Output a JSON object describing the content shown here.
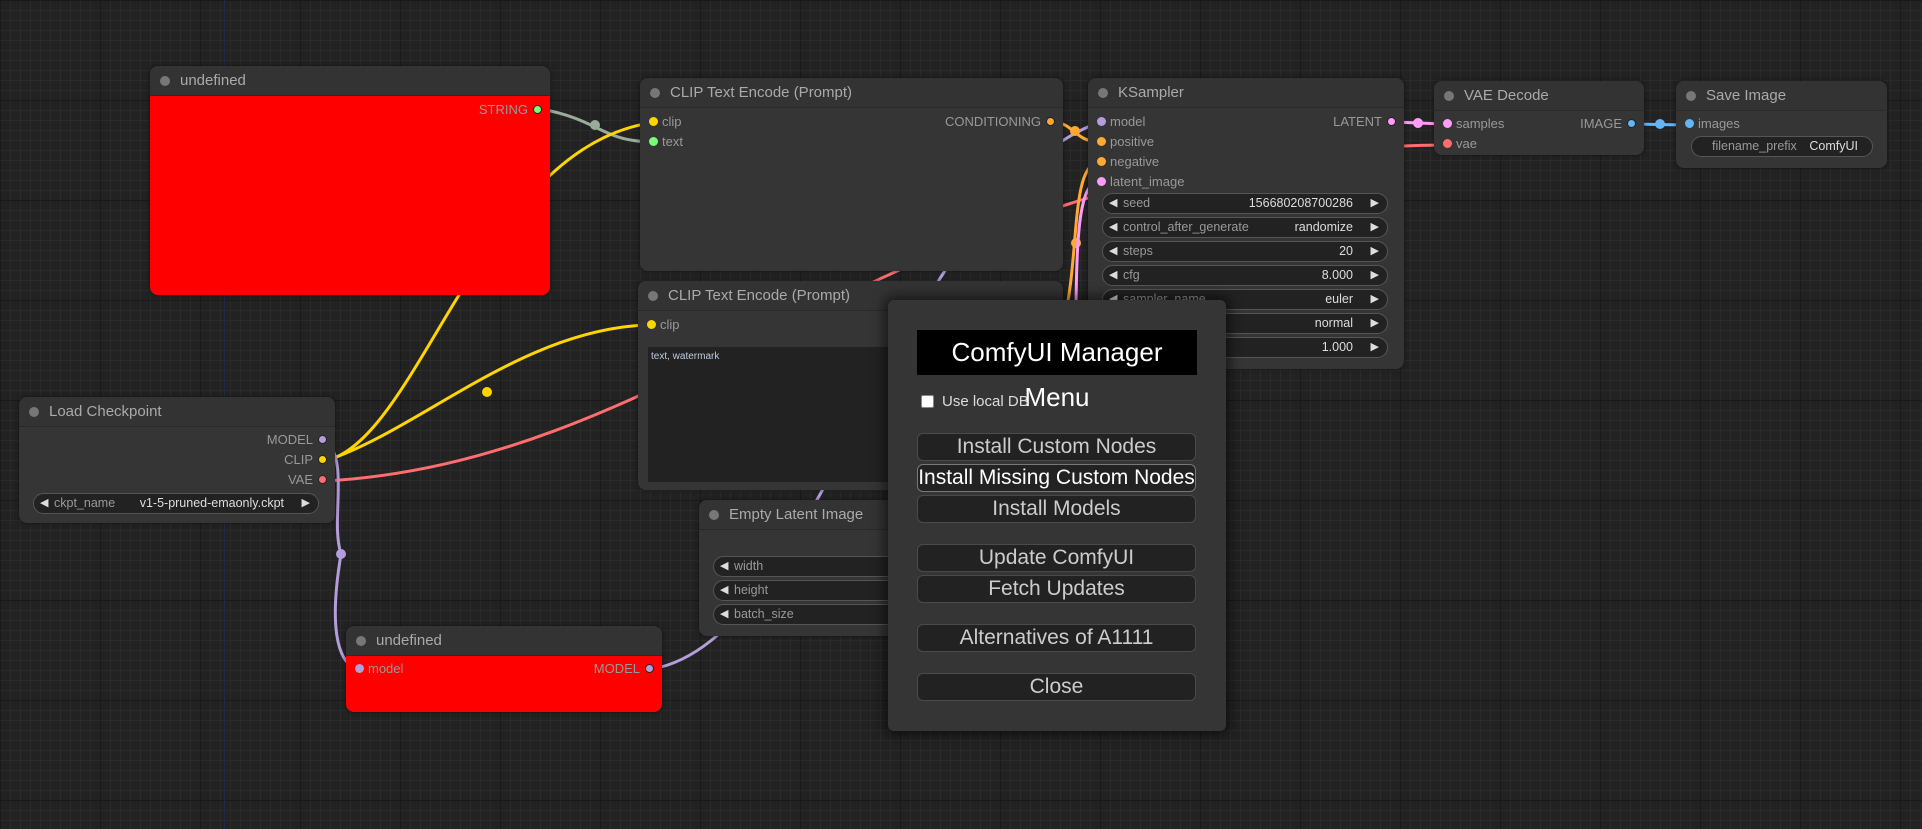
{
  "nodes": {
    "undef_top": {
      "title": "undefined",
      "outputs": [
        "STRING"
      ]
    },
    "clip1": {
      "title": "CLIP Text Encode (Prompt)",
      "inputs": [
        "clip",
        "text"
      ],
      "outputs": [
        "CONDITIONING"
      ]
    },
    "clip2": {
      "title": "CLIP Text Encode (Prompt)",
      "inputs": [
        "clip"
      ],
      "text": "text, watermark"
    },
    "ksampler": {
      "title": "KSampler",
      "inputs": [
        "model",
        "positive",
        "negative",
        "latent_image"
      ],
      "outputs": [
        "LATENT"
      ],
      "widgets": [
        {
          "label": "seed",
          "value": "156680208700286"
        },
        {
          "label": "control_after_generate",
          "value": "randomize"
        },
        {
          "label": "steps",
          "value": "20"
        },
        {
          "label": "cfg",
          "value": "8.000"
        },
        {
          "label": "sampler_name",
          "value": "euler"
        },
        {
          "label": "",
          "value": "normal"
        },
        {
          "label": "",
          "value": "1.000"
        }
      ]
    },
    "vae": {
      "title": "VAE Decode",
      "inputs": [
        "samples",
        "vae"
      ],
      "outputs": [
        "IMAGE"
      ]
    },
    "save": {
      "title": "Save Image",
      "inputs": [
        "images"
      ],
      "widgets": [
        {
          "label": "filename_prefix",
          "value": "ComfyUI"
        }
      ]
    },
    "ckpt": {
      "title": "Load Checkpoint",
      "outputs": [
        "MODEL",
        "CLIP",
        "VAE"
      ],
      "widgets": [
        {
          "label": "ckpt_name",
          "value": "v1-5-pruned-emaonly.ckpt"
        }
      ]
    },
    "latent": {
      "title": "Empty Latent Image",
      "widgets": [
        {
          "label": "width"
        },
        {
          "label": "height"
        },
        {
          "label": "batch_size"
        }
      ]
    },
    "undef_bot": {
      "title": "undefined",
      "inputs": [
        "model"
      ],
      "outputs": [
        "MODEL"
      ]
    }
  },
  "colors": {
    "model": "#b39ddb",
    "clip": "#ffd500",
    "vae": "#ff6e6e",
    "conditioning": "#ffa931",
    "latent": "#ff9cf9",
    "image": "#64b5f6",
    "string": "#77ff77",
    "error_node": "#ff0000"
  },
  "dialog": {
    "title": "ComfyUI Manager Menu",
    "use_local_db": "Use local DB",
    "use_local_db_checked": false,
    "buttons": [
      "Install Custom Nodes",
      "Install Missing Custom Nodes",
      "Install Models",
      "Update ComfyUI",
      "Fetch Updates",
      "Alternatives of A1111",
      "Close"
    ]
  }
}
